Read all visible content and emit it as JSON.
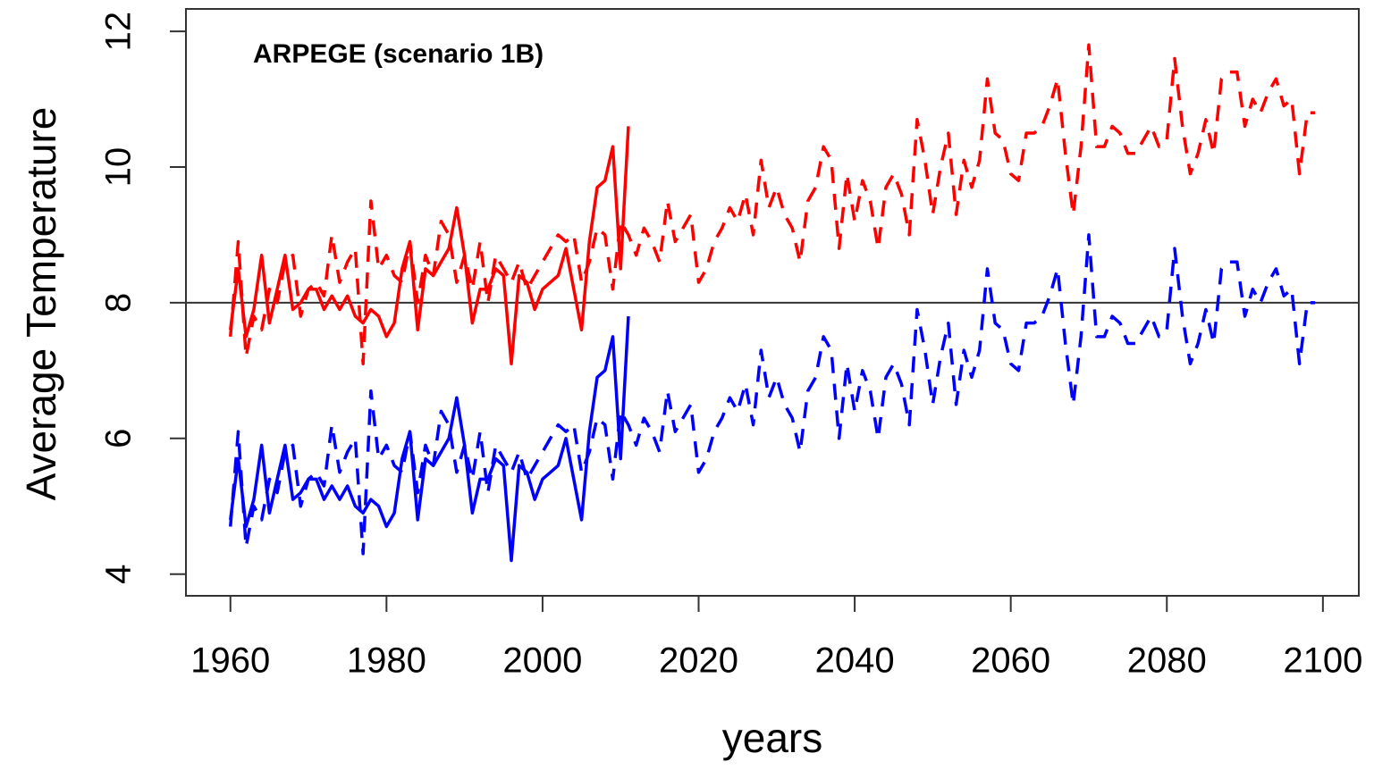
{
  "chart_data": {
    "type": "line",
    "annotation": "ARPEGE (scenario 1B)",
    "x_label": "years",
    "y_label": "Average Temperature",
    "xlim": [
      1954.3,
      2104.6
    ],
    "ylim": [
      3.68,
      12.33
    ],
    "xticks": [
      1960,
      1980,
      2000,
      2020,
      2040,
      2060,
      2080,
      2100
    ],
    "yticks": [
      4,
      6,
      8,
      10,
      12
    ],
    "reference_line": 8,
    "series": [
      {
        "color": "#ff0000",
        "dashed": true,
        "x": [
          1960,
          1961,
          1962,
          1963,
          1964,
          1965,
          1966,
          1967,
          1968,
          1969,
          1970,
          1971,
          1972,
          1973,
          1974,
          1975,
          1976,
          1977,
          1978,
          1979,
          1980,
          1981,
          1982,
          1983,
          1984,
          1985,
          1986,
          1987,
          1988,
          1989,
          1990,
          1991,
          1992,
          1993,
          1994,
          1995,
          1996,
          1997,
          1998,
          1999,
          2000,
          2001,
          2002,
          2003,
          2004,
          2005,
          2006,
          2007,
          2008,
          2009,
          2010,
          2011,
          2012,
          2013,
          2014,
          2015,
          2016,
          2017,
          2018,
          2019,
          2020,
          2021,
          2022,
          2023,
          2024,
          2025,
          2026,
          2027,
          2028,
          2029,
          2030,
          2031,
          2032,
          2033,
          2034,
          2035,
          2036,
          2037,
          2038,
          2039,
          2040,
          2041,
          2042,
          2043,
          2044,
          2045,
          2046,
          2047,
          2048,
          2049,
          2050,
          2051,
          2052,
          2053,
          2054,
          2055,
          2056,
          2057,
          2058,
          2059,
          2060,
          2061,
          2062,
          2063,
          2064,
          2065,
          2066,
          2067,
          2068,
          2069,
          2070,
          2071,
          2072,
          2073,
          2074,
          2075,
          2076,
          2077,
          2078,
          2079,
          2080,
          2081,
          2082,
          2083,
          2084,
          2085,
          2086,
          2087,
          2088,
          2089,
          2090,
          2091,
          2092,
          2093,
          2094,
          2095,
          2096,
          2097,
          2098,
          2099
        ],
        "values": [
          7.5,
          8.9,
          7.2,
          7.8,
          7.6,
          8.2,
          8.0,
          8.6,
          8.7,
          7.8,
          8.2,
          8.3,
          8.1,
          9.0,
          8.3,
          8.6,
          8.8,
          7.1,
          9.5,
          8.5,
          8.7,
          8.4,
          8.3,
          8.9,
          8.0,
          8.7,
          8.4,
          9.2,
          9.0,
          8.3,
          8.7,
          8.2,
          8.9,
          8.0,
          8.7,
          8.5,
          8.3,
          8.6,
          8.2,
          8.4,
          8.6,
          8.8,
          9.0,
          8.9,
          9.0,
          8.3,
          8.6,
          9.1,
          9.0,
          8.2,
          9.2,
          9.0,
          8.7,
          9.1,
          8.9,
          8.6,
          9.5,
          8.9,
          9.1,
          9.3,
          8.3,
          8.5,
          8.9,
          9.1,
          9.4,
          9.2,
          9.6,
          9.0,
          10.1,
          9.4,
          9.7,
          9.3,
          9.1,
          8.6,
          9.5,
          9.7,
          10.3,
          10.1,
          8.8,
          9.9,
          9.2,
          9.8,
          9.5,
          8.8,
          9.7,
          9.9,
          9.6,
          9.0,
          10.7,
          10.1,
          9.3,
          10.0,
          10.5,
          9.3,
          10.1,
          9.7,
          10.1,
          11.3,
          10.5,
          10.4,
          9.9,
          9.8,
          10.5,
          10.5,
          10.6,
          10.9,
          11.3,
          10.2,
          9.3,
          10.3,
          11.8,
          10.3,
          10.3,
          10.6,
          10.5,
          10.2,
          10.2,
          10.4,
          10.6,
          10.3,
          10.4,
          11.6,
          10.6,
          9.9,
          10.2,
          10.7,
          10.2,
          11.3,
          11.4,
          11.4,
          10.6,
          11.0,
          10.8,
          11.1,
          11.3,
          10.9,
          11.0,
          9.9,
          10.8,
          10.8
        ]
      },
      {
        "color": "#0000ff",
        "dashed": true,
        "x": [
          1960,
          1961,
          1962,
          1963,
          1964,
          1965,
          1966,
          1967,
          1968,
          1969,
          1970,
          1971,
          1972,
          1973,
          1974,
          1975,
          1976,
          1977,
          1978,
          1979,
          1980,
          1981,
          1982,
          1983,
          1984,
          1985,
          1986,
          1987,
          1988,
          1989,
          1990,
          1991,
          1992,
          1993,
          1994,
          1995,
          1996,
          1997,
          1998,
          1999,
          2000,
          2001,
          2002,
          2003,
          2004,
          2005,
          2006,
          2007,
          2008,
          2009,
          2010,
          2011,
          2012,
          2013,
          2014,
          2015,
          2016,
          2017,
          2018,
          2019,
          2020,
          2021,
          2022,
          2023,
          2024,
          2025,
          2026,
          2027,
          2028,
          2029,
          2030,
          2031,
          2032,
          2033,
          2034,
          2035,
          2036,
          2037,
          2038,
          2039,
          2040,
          2041,
          2042,
          2043,
          2044,
          2045,
          2046,
          2047,
          2048,
          2049,
          2050,
          2051,
          2052,
          2053,
          2054,
          2055,
          2056,
          2057,
          2058,
          2059,
          2060,
          2061,
          2062,
          2063,
          2064,
          2065,
          2066,
          2067,
          2068,
          2069,
          2070,
          2071,
          2072,
          2073,
          2074,
          2075,
          2076,
          2077,
          2078,
          2079,
          2080,
          2081,
          2082,
          2083,
          2084,
          2085,
          2086,
          2087,
          2088,
          2089,
          2090,
          2091,
          2092,
          2093,
          2094,
          2095,
          2096,
          2097,
          2098,
          2099
        ],
        "values": [
          4.7,
          6.1,
          4.4,
          5.0,
          4.8,
          5.4,
          5.2,
          5.8,
          5.9,
          5.0,
          5.4,
          5.5,
          5.3,
          6.2,
          5.5,
          5.8,
          6.0,
          4.3,
          6.7,
          5.7,
          5.9,
          5.6,
          5.5,
          6.1,
          5.2,
          5.9,
          5.6,
          6.4,
          6.2,
          5.5,
          5.9,
          5.4,
          6.1,
          5.2,
          5.9,
          5.7,
          5.5,
          5.8,
          5.4,
          5.6,
          5.8,
          6.0,
          6.2,
          6.1,
          6.2,
          5.5,
          5.8,
          6.3,
          6.2,
          5.4,
          6.4,
          6.2,
          5.9,
          6.3,
          6.1,
          5.8,
          6.7,
          6.1,
          6.3,
          6.5,
          5.5,
          5.7,
          6.1,
          6.3,
          6.6,
          6.4,
          6.8,
          6.2,
          7.3,
          6.6,
          6.9,
          6.5,
          6.3,
          5.8,
          6.7,
          6.9,
          7.5,
          7.3,
          6.0,
          7.1,
          6.4,
          7.0,
          6.7,
          6.0,
          6.9,
          7.1,
          6.8,
          6.2,
          7.9,
          7.3,
          6.5,
          7.2,
          7.7,
          6.5,
          7.3,
          6.9,
          7.3,
          8.5,
          7.7,
          7.6,
          7.1,
          7.0,
          7.7,
          7.7,
          7.8,
          8.1,
          8.5,
          7.4,
          6.5,
          7.5,
          9.0,
          7.5,
          7.5,
          7.8,
          7.7,
          7.4,
          7.4,
          7.6,
          7.8,
          7.5,
          7.6,
          8.8,
          7.8,
          7.1,
          7.4,
          7.9,
          7.4,
          8.5,
          8.6,
          8.6,
          7.8,
          8.2,
          8.0,
          8.3,
          8.5,
          8.1,
          8.2,
          7.1,
          8.0,
          8.0
        ]
      },
      {
        "color": "#ff0000",
        "dashed": false,
        "x": [
          1960,
          1961,
          1962,
          1963,
          1964,
          1965,
          1966,
          1967,
          1968,
          1969,
          1970,
          1971,
          1972,
          1973,
          1974,
          1975,
          1976,
          1977,
          1978,
          1979,
          1980,
          1981,
          1982,
          1983,
          1984,
          1985,
          1986,
          1987,
          1988,
          1989,
          1990,
          1991,
          1992,
          1993,
          1994,
          1995,
          1996,
          1997,
          1998,
          1999,
          2000,
          2001,
          2002,
          2003,
          2004,
          2005,
          2006,
          2007,
          2008,
          2009,
          2010,
          2011
        ],
        "values": [
          7.6,
          8.5,
          7.5,
          7.9,
          8.7,
          7.7,
          8.2,
          8.7,
          7.9,
          8.0,
          8.2,
          8.2,
          7.9,
          8.1,
          7.9,
          8.1,
          7.8,
          7.7,
          7.9,
          7.8,
          7.5,
          7.7,
          8.5,
          8.9,
          7.6,
          8.5,
          8.4,
          8.6,
          8.8,
          9.4,
          8.7,
          7.7,
          8.2,
          8.2,
          8.5,
          8.4,
          7.1,
          8.4,
          8.3,
          7.9,
          8.2,
          8.3,
          8.4,
          8.8,
          8.2,
          7.6,
          8.9,
          9.7,
          9.8,
          10.3,
          8.5,
          10.6
        ]
      },
      {
        "color": "#0000ff",
        "dashed": false,
        "x": [
          1960,
          1961,
          1962,
          1963,
          1964,
          1965,
          1966,
          1967,
          1968,
          1969,
          1970,
          1971,
          1972,
          1973,
          1974,
          1975,
          1976,
          1977,
          1978,
          1979,
          1980,
          1981,
          1982,
          1983,
          1984,
          1985,
          1986,
          1987,
          1988,
          1989,
          1990,
          1991,
          1992,
          1993,
          1994,
          1995,
          1996,
          1997,
          1998,
          1999,
          2000,
          2001,
          2002,
          2003,
          2004,
          2005,
          2006,
          2007,
          2008,
          2009,
          2010,
          2011
        ],
        "values": [
          4.8,
          5.7,
          4.7,
          5.1,
          5.9,
          4.9,
          5.4,
          5.9,
          5.1,
          5.2,
          5.4,
          5.4,
          5.1,
          5.3,
          5.1,
          5.3,
          5.0,
          4.9,
          5.1,
          5.0,
          4.7,
          4.9,
          5.7,
          6.1,
          4.8,
          5.7,
          5.6,
          5.8,
          6.0,
          6.6,
          5.9,
          4.9,
          5.4,
          5.4,
          5.7,
          5.6,
          4.2,
          5.6,
          5.5,
          5.1,
          5.4,
          5.5,
          5.6,
          6.0,
          5.4,
          4.8,
          6.1,
          6.9,
          7.0,
          7.5,
          5.7,
          7.8
        ]
      }
    ]
  }
}
